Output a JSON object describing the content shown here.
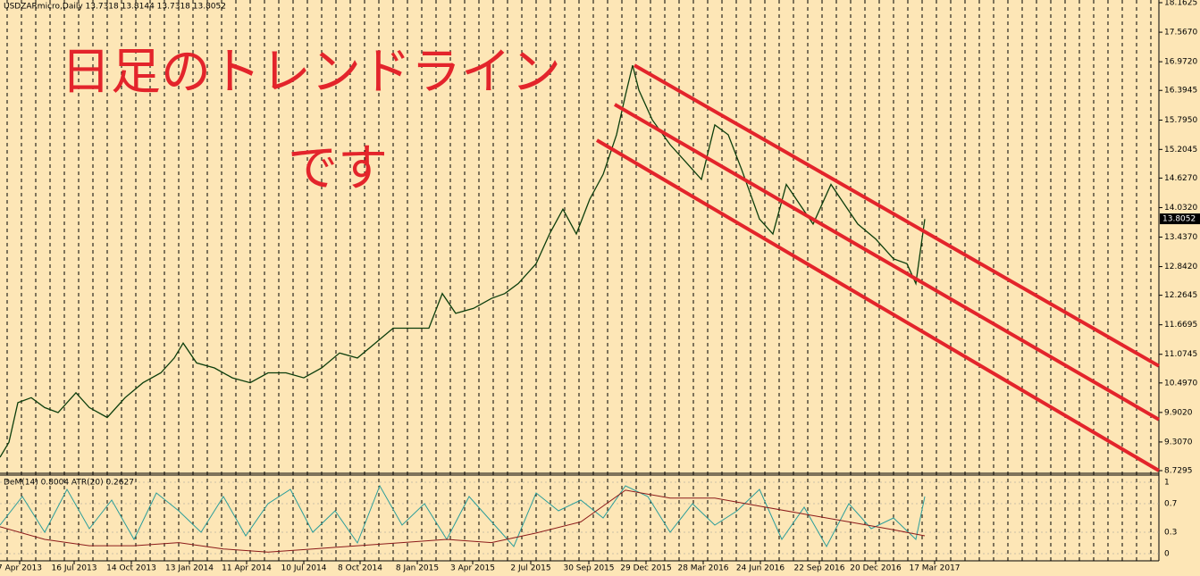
{
  "chart_data": {
    "type": "line",
    "title": "USDZARmicro,Daily  13.7318 13.8144 13.7318 13.8052",
    "xlim": [
      0,
      1297
    ],
    "ylim": [
      8.7295,
      18.1625
    ],
    "yticks": [
      18.1625,
      {
        "value": 17.567,
        "label": "17.5670"
      },
      {
        "value": 16.972,
        "label": "16.9720"
      },
      16.3945,
      {
        "value": 15.795,
        "label": "15.7950"
      },
      15.2045,
      {
        "value": 14.627,
        "label": "14.6270"
      },
      {
        "value": 14.032,
        "label": "14.0320"
      },
      {
        "value": 13.437,
        "label": "13.4370"
      },
      {
        "value": 12.842,
        "label": "12.8420"
      },
      12.2645,
      11.6695,
      11.0745,
      {
        "value": 10.497,
        "label": "10.4970"
      },
      {
        "value": 9.902,
        "label": "9.9020"
      },
      {
        "value": 9.307,
        "label": "9.3070"
      },
      8.7295
    ],
    "xticks": [
      {
        "value": 22,
        "label": "7 Apr 2013"
      },
      {
        "value": 83,
        "label": "16 Jul 2013"
      },
      {
        "value": 147,
        "label": "14 Oct 2013"
      },
      {
        "value": 212,
        "label": "13 Jan 2014"
      },
      {
        "value": 276,
        "label": "11 Apr 2014"
      },
      {
        "value": 340,
        "label": "10 Jul 2014"
      },
      {
        "value": 403,
        "label": "8 Oct 2014"
      },
      {
        "value": 467,
        "label": "8 Jan 2015"
      },
      {
        "value": 529,
        "label": "3 Apr 2015"
      },
      {
        "value": 594,
        "label": "2 Jul 2015"
      },
      {
        "value": 659,
        "label": "30 Sep 2015"
      },
      {
        "value": 723,
        "label": "29 Dec 2015"
      },
      {
        "value": 787,
        "label": "28 Mar 2016"
      },
      {
        "value": 851,
        "label": "24 Jun 2016"
      },
      {
        "value": 917,
        "label": "22 Sep 2016"
      },
      {
        "value": 980,
        "label": "20 Dec 2016"
      },
      {
        "value": 1046,
        "label": "17 Mar 2017"
      }
    ],
    "series": [
      {
        "color": "#0b3d0b",
        "x": [
          0,
          10,
          20,
          35,
          50,
          65,
          85,
          100,
          120,
          140,
          160,
          180,
          195,
          205,
          220,
          240,
          260,
          280,
          300,
          320,
          340,
          360,
          380,
          400,
          420,
          440,
          460,
          480,
          495,
          510,
          530,
          550,
          565,
          580,
          600,
          615,
          630,
          645,
          660,
          675,
          690,
          700,
          708,
          715,
          730,
          750,
          770,
          785,
          800,
          815,
          830,
          850,
          865,
          880,
          895,
          910,
          930,
          945,
          960,
          980,
          1000,
          1015,
          1025,
          1035
        ],
        "values": [
          9.0,
          9.3,
          10.1,
          10.2,
          10.0,
          9.9,
          10.3,
          10.0,
          9.8,
          10.2,
          10.5,
          10.7,
          11.0,
          11.3,
          10.9,
          10.8,
          10.6,
          10.5,
          10.7,
          10.7,
          10.6,
          10.8,
          11.1,
          11.0,
          11.3,
          11.6,
          11.6,
          11.6,
          12.3,
          11.9,
          12.0,
          12.2,
          12.3,
          12.5,
          12.9,
          13.5,
          14.0,
          13.5,
          14.2,
          14.7,
          15.5,
          16.3,
          16.9,
          16.4,
          15.8,
          15.3,
          14.9,
          14.6,
          15.7,
          15.5,
          14.8,
          13.8,
          13.5,
          14.5,
          14.1,
          13.7,
          14.5,
          14.1,
          13.7,
          13.4,
          13.0,
          12.9,
          12.5,
          13.8
        ]
      }
    ],
    "last_price": 13.8052,
    "annotations": [
      "日足のトレンドライン",
      "です"
    ],
    "trendlines": [
      {
        "color": "#e3242b",
        "x": [
          710,
          1297
        ],
        "values": [
          16.9,
          10.84
        ]
      },
      {
        "color": "#e3242b",
        "x": [
          688,
          1297
        ],
        "values": [
          16.11,
          9.76
        ]
      },
      {
        "color": "#e3242b",
        "x": [
          668,
          1297
        ],
        "values": [
          15.39,
          8.73
        ]
      }
    ],
    "indicator": {
      "type": "line",
      "label": "DeM(14) 0.8004 ATR(20) 0.2627",
      "ylim": [
        0,
        1
      ],
      "yticks": [
        1,
        0.7,
        0.3,
        0
      ],
      "y2lim": [
        0.15,
        0.6
      ],
      "series": [
        {
          "color": "#2a9d9a",
          "x": [
            0,
            25,
            50,
            75,
            100,
            125,
            150,
            175,
            200,
            225,
            250,
            275,
            300,
            325,
            350,
            375,
            400,
            425,
            450,
            475,
            500,
            525,
            550,
            575,
            600,
            625,
            650,
            675,
            700,
            725,
            750,
            775,
            800,
            825,
            850,
            875,
            900,
            925,
            950,
            975,
            1000,
            1025,
            1035
          ],
          "values": [
            0.4,
            0.8,
            0.3,
            0.9,
            0.35,
            0.75,
            0.2,
            0.85,
            0.6,
            0.3,
            0.8,
            0.25,
            0.7,
            0.9,
            0.3,
            0.6,
            0.15,
            0.95,
            0.4,
            0.7,
            0.2,
            0.8,
            0.45,
            0.1,
            0.85,
            0.6,
            0.75,
            0.5,
            0.95,
            0.8,
            0.3,
            0.7,
            0.4,
            0.6,
            0.9,
            0.2,
            0.65,
            0.1,
            0.7,
            0.35,
            0.5,
            0.2,
            0.8
          ]
        },
        {
          "color": "#8b1a1a",
          "axis": "y2",
          "x": [
            0,
            50,
            100,
            150,
            200,
            250,
            300,
            350,
            400,
            450,
            500,
            550,
            600,
            650,
            700,
            750,
            800,
            850,
            900,
            950,
            1000,
            1035
          ],
          "values": [
            0.32,
            0.24,
            0.2,
            0.2,
            0.22,
            0.18,
            0.16,
            0.18,
            0.2,
            0.22,
            0.24,
            0.22,
            0.28,
            0.35,
            0.55,
            0.5,
            0.5,
            0.45,
            0.4,
            0.35,
            0.3,
            0.2627
          ]
        }
      ]
    }
  }
}
